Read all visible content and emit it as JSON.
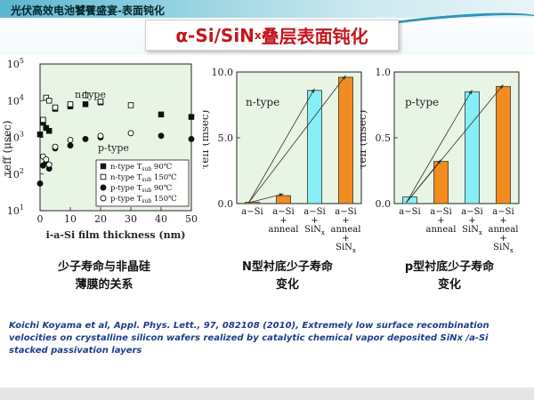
{
  "header": {
    "top_title": "光伏高效电池饕餮盛宴-表面钝化",
    "main_title_pre": "α-Si/SiN",
    "main_title_sub": "x",
    "main_title_post": "叠层表面钝化"
  },
  "colors": {
    "title_red": "#c3161c",
    "bar_orange": "#f28c1e",
    "bar_cyan": "#86eef4",
    "plot_bg": "#e8f5e5",
    "citation_blue": "#1f3d8a"
  },
  "chart_data": [
    {
      "type": "scatter",
      "ylabel": "τeff (μsec)",
      "xlabel": "i-a-Si film thickness (nm)",
      "yscale": "log",
      "xlim": [
        0,
        50
      ],
      "ylim": [
        10,
        100000
      ],
      "x_ticks": [
        "0",
        "10",
        "20",
        "30",
        "40",
        "50"
      ],
      "y_ticks": [
        "10^1",
        "10^2",
        "10^3",
        "10^4",
        "10^5"
      ],
      "annotations": [
        "n-type",
        "p-type"
      ],
      "legend": {
        "placement": "bottom-right",
        "entries": [
          {
            "label": "n-type T",
            "sub": "sub",
            "temp": " 90℃",
            "marker": "filled-square"
          },
          {
            "label": "n-type T",
            "sub": "sub",
            "temp": " 150℃",
            "marker": "open-square"
          },
          {
            "label": "p-type T",
            "sub": "sub",
            "temp": " 90℃",
            "marker": "filled-circle"
          },
          {
            "label": "p-type T",
            "sub": "sub",
            "temp": " 150℃",
            "marker": "open-circle"
          }
        ]
      },
      "series": [
        {
          "marker": "filled-square",
          "x": [
            0,
            1,
            2,
            3,
            5,
            10,
            15,
            20,
            40,
            50
          ],
          "y": [
            1200,
            2500,
            1800,
            1500,
            6000,
            7000,
            8000,
            9000,
            4200,
            3600
          ]
        },
        {
          "marker": "open-square",
          "x": [
            1,
            2,
            3,
            5,
            10,
            15,
            20,
            30
          ],
          "y": [
            3000,
            12000,
            10000,
            6500,
            8000,
            14000,
            9500,
            7500
          ]
        },
        {
          "marker": "filled-circle",
          "x": [
            0,
            1,
            2,
            3,
            5,
            10,
            15,
            20,
            40,
            50
          ],
          "y": [
            55,
            170,
            200,
            140,
            500,
            600,
            900,
            1000,
            1100,
            900
          ]
        },
        {
          "marker": "open-circle",
          "x": [
            1,
            2,
            3,
            5,
            10,
            20,
            30
          ],
          "y": [
            300,
            250,
            180,
            550,
            850,
            1100,
            1300
          ]
        }
      ]
    },
    {
      "type": "bar",
      "annotation": "n-type",
      "ylabel": "τeff (msec)",
      "ylim": [
        0,
        10
      ],
      "y_ticks": [
        "0.0",
        "5.0",
        "10.0"
      ],
      "categories": [
        {
          "line1": "a−Si",
          "line2": "",
          "line3": "",
          "line4": ""
        },
        {
          "line1": "a−Si",
          "line2": "+",
          "line3": "anneal",
          "line4": ""
        },
        {
          "line1": "a−Si",
          "line2": "+",
          "line3": "SiN",
          "line3_sub": "x",
          "line4": ""
        },
        {
          "line1": "a−Si",
          "line2": "+",
          "line3": "anneal",
          "line4": "+",
          "line5": "SiN",
          "line5_sub": "x"
        }
      ],
      "values": [
        0.1,
        0.6,
        8.6,
        9.6
      ],
      "bar_colors": [
        "#f28c1e",
        "#f28c1e",
        "#86eef4",
        "#f28c1e"
      ]
    },
    {
      "type": "bar",
      "annotation": "p-type",
      "ylabel": "τeff (msec)",
      "ylim": [
        0,
        1
      ],
      "y_ticks": [
        "0.0",
        "0.5",
        "1.0"
      ],
      "categories": [
        {
          "line1": "a−Si",
          "line2": "",
          "line3": "",
          "line4": ""
        },
        {
          "line1": "a−Si",
          "line2": "+",
          "line3": "anneal",
          "line4": ""
        },
        {
          "line1": "a−Si",
          "line2": "+",
          "line3": "SiN",
          "line3_sub": "x",
          "line4": ""
        },
        {
          "line1": "a−Si",
          "line2": "+",
          "line3": "anneal",
          "line4": "+",
          "line5": "SiN",
          "line5_sub": "x"
        }
      ],
      "values": [
        0.05,
        0.32,
        0.85,
        0.89
      ],
      "bar_colors": [
        "#86eef4",
        "#f28c1e",
        "#86eef4",
        "#f28c1e"
      ]
    }
  ],
  "captions": {
    "chart1_line1": "少子寿命与非晶硅",
    "chart1_line2": "薄膜的关系",
    "chart2_line1": "N型衬底少子寿命",
    "chart2_line2": "变化",
    "chart3_line1": "p型衬底少子寿命",
    "chart3_line2": "变化"
  },
  "citation": {
    "text": "Koichi Koyama et al, Appl. Phys. Lett., 97, 082108 (2010), Extremely low surface recombination velocities on crystalline silicon wafers realized by catalytic chemical vapor deposited SiNx /a-Si stacked passivation layers"
  }
}
